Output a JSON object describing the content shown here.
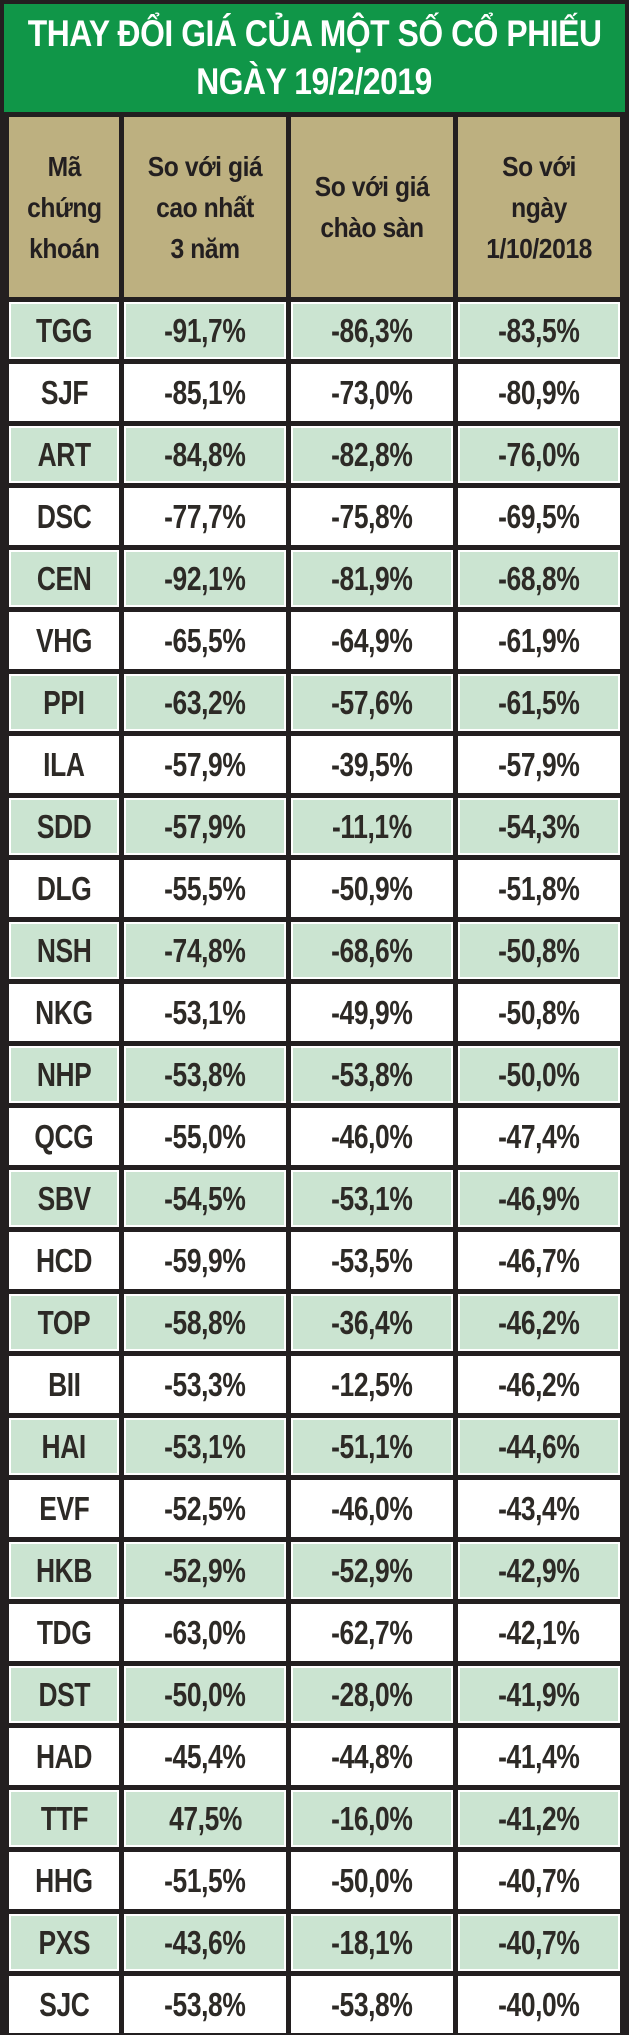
{
  "title": {
    "line1": "THAY ĐỔI GIÁ CỦA MỘT SỐ CỔ PHIẾU",
    "line2": "NGÀY 19/2/2019"
  },
  "chart_data": {
    "type": "table",
    "title": "THAY ĐỔI GIÁ CỦA MỘT SỐ CỔ PHIẾU NGÀY 19/2/2019",
    "columns": [
      "Mã\nchứng\nkhoán",
      "So với giá\ncao nhất\n3 năm",
      "So với giá\nchào sàn",
      "So với\nngày\n1/10/2018"
    ],
    "rows": [
      [
        "TGG",
        "-91,7%",
        "-86,3%",
        "-83,5%"
      ],
      [
        "SJF",
        "-85,1%",
        "-73,0%",
        "-80,9%"
      ],
      [
        "ART",
        "-84,8%",
        "-82,8%",
        "-76,0%"
      ],
      [
        "DSC",
        "-77,7%",
        "-75,8%",
        "-69,5%"
      ],
      [
        "CEN",
        "-92,1%",
        "-81,9%",
        "-68,8%"
      ],
      [
        "VHG",
        "-65,5%",
        "-64,9%",
        "-61,9%"
      ],
      [
        "PPI",
        "-63,2%",
        "-57,6%",
        "-61,5%"
      ],
      [
        "ILA",
        "-57,9%",
        "-39,5%",
        "-57,9%"
      ],
      [
        "SDD",
        "-57,9%",
        "-11,1%",
        "-54,3%"
      ],
      [
        "DLG",
        "-55,5%",
        "-50,9%",
        "-51,8%"
      ],
      [
        "NSH",
        "-74,8%",
        "-68,6%",
        "-50,8%"
      ],
      [
        "NKG",
        "-53,1%",
        "-49,9%",
        "-50,8%"
      ],
      [
        "NHP",
        "-53,8%",
        "-53,8%",
        "-50,0%"
      ],
      [
        "QCG",
        "-55,0%",
        "-46,0%",
        "-47,4%"
      ],
      [
        "SBV",
        "-54,5%",
        "-53,1%",
        "-46,9%"
      ],
      [
        "HCD",
        "-59,9%",
        "-53,5%",
        "-46,7%"
      ],
      [
        "TOP",
        "-58,8%",
        "-36,4%",
        "-46,2%"
      ],
      [
        "BII",
        "-53,3%",
        "-12,5%",
        "-46,2%"
      ],
      [
        "HAI",
        "-53,1%",
        "-51,1%",
        "-44,6%"
      ],
      [
        "EVF",
        "-52,5%",
        "-46,0%",
        "-43,4%"
      ],
      [
        "HKB",
        "-52,9%",
        "-52,9%",
        "-42,9%"
      ],
      [
        "TDG",
        "-63,0%",
        "-62,7%",
        "-42,1%"
      ],
      [
        "DST",
        "-50,0%",
        "-28,0%",
        "-41,9%"
      ],
      [
        "HAD",
        "-45,4%",
        "-44,8%",
        "-41,4%"
      ],
      [
        "TTF",
        "47,5%",
        "-16,0%",
        "-41,2%"
      ],
      [
        "HHG",
        "-51,5%",
        "-50,0%",
        "-40,7%"
      ],
      [
        "PXS",
        "-43,6%",
        "-18,1%",
        "-40,7%"
      ],
      [
        "SJC",
        "-53,8%",
        "-53,8%",
        "-40,0%"
      ]
    ],
    "layout": {
      "striping": "odd rows light green, even rows white",
      "grid": "dark grid lines with white cell outlines"
    }
  },
  "colors": {
    "title_bg": "#109648",
    "title_text": "#ffffff",
    "header_bg": "#bdb080",
    "header_text": "#231f20",
    "row_green": "#cbe4d1",
    "row_white": "#ffffff",
    "grid": "#231f20",
    "text": "#2d2a26"
  }
}
